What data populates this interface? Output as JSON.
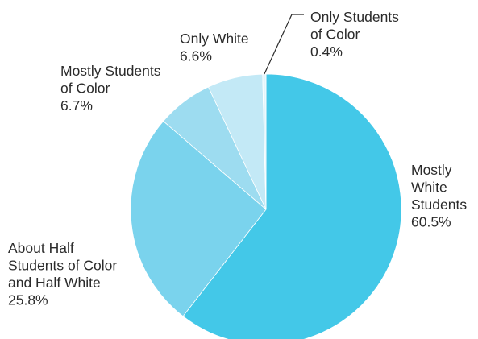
{
  "chart_data": {
    "type": "pie",
    "title": "",
    "start": "12 o'clock",
    "direction": "clockwise",
    "slices": [
      {
        "name": "Mostly White Students",
        "value": 60.5,
        "label": [
          "Mostly",
          "White",
          "Students",
          "60.5%"
        ],
        "color": "#43c8e8"
      },
      {
        "name": "About Half Students of Color and Half White",
        "value": 25.8,
        "label": [
          "About Half",
          "Students of Color",
          "and Half White",
          "25.8%"
        ],
        "color": "#7ad3ed"
      },
      {
        "name": "Mostly Students of Color",
        "value": 6.7,
        "label": [
          "Mostly Students",
          "of Color",
          "6.7%"
        ],
        "color": "#9ddcf0"
      },
      {
        "name": "Only White",
        "value": 6.6,
        "label": [
          "Only White",
          "6.6%"
        ],
        "color": "#c3e9f6"
      },
      {
        "name": "Only Students of Color",
        "value": 0.4,
        "label": [
          "Only Students",
          "of Color",
          "0.4%"
        ],
        "color": "#e3f5fb"
      }
    ],
    "legend": "none",
    "callout_line_color": "#2b2b2b"
  }
}
